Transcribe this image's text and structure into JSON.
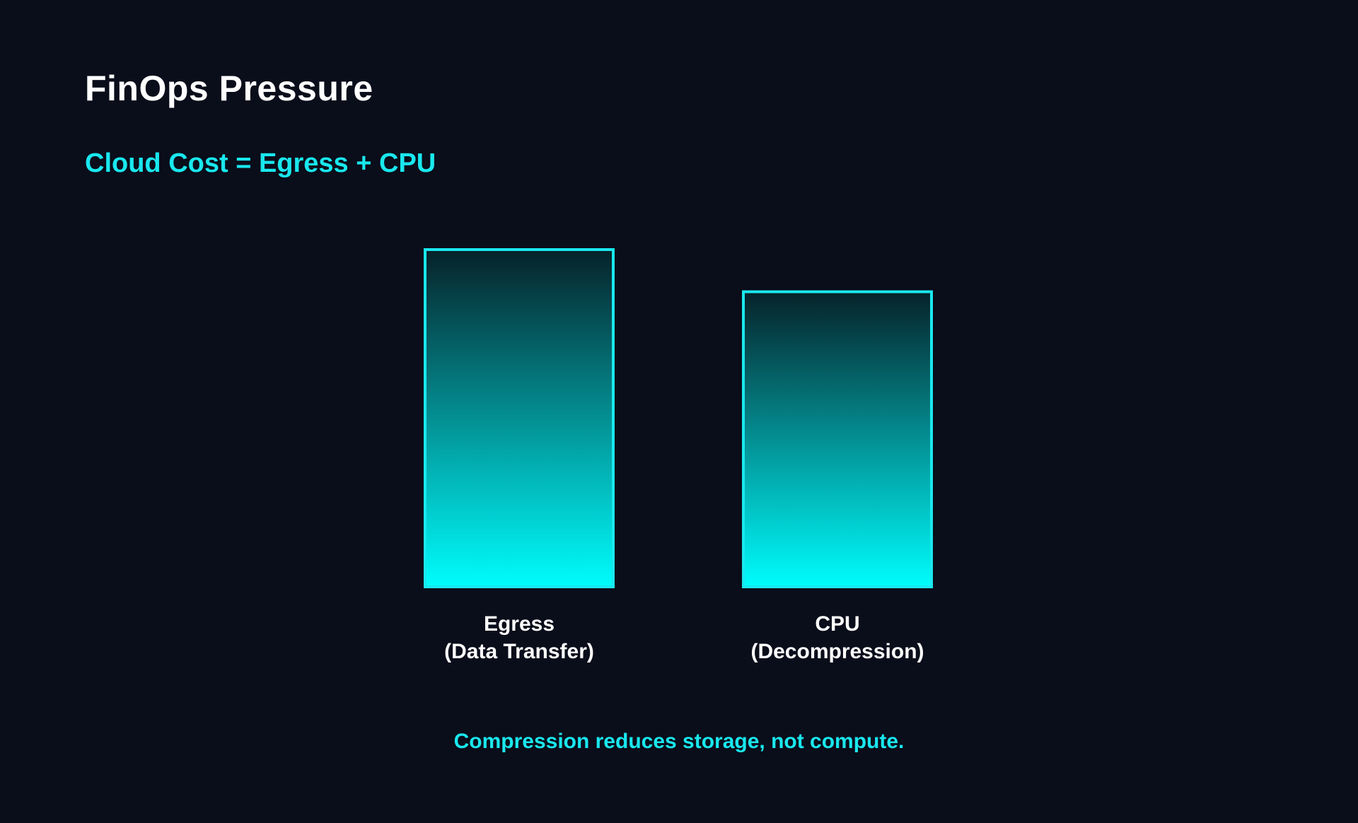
{
  "slide": {
    "title": "FinOps Pressure",
    "subtitle": "Cloud Cost = Egress + CPU",
    "footnote": "Compression reduces storage, not compute."
  },
  "colors": {
    "background": "#0a0d1a",
    "accent": "#19e8ee",
    "bar_top": "#062229",
    "bar_bottom": "#00fdfd",
    "text": "#ffffff"
  },
  "chart_data": {
    "type": "bar",
    "title": "",
    "xlabel": "",
    "ylabel": "",
    "categories": [
      [
        "Egress",
        "(Data Transfer)"
      ],
      [
        "CPU",
        "(Decompression)"
      ]
    ],
    "values": [
      100,
      87.5
    ],
    "ylim": [
      0,
      100
    ],
    "grid": false,
    "legend": "none"
  }
}
